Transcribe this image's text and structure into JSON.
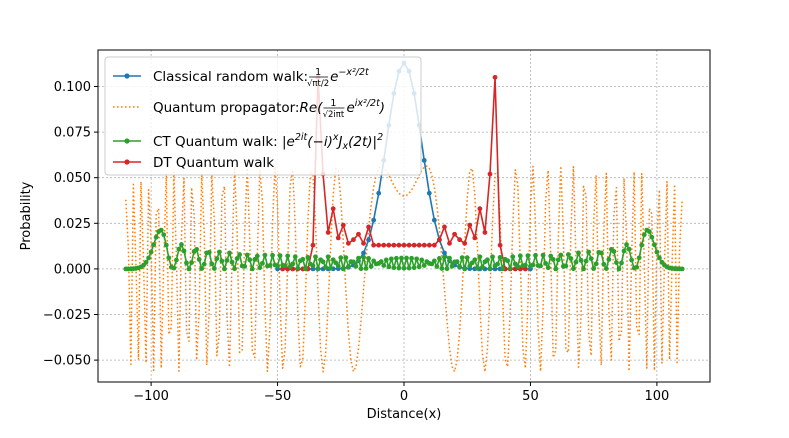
{
  "chart_data": {
    "type": "line",
    "xlabel": "Distance(x)",
    "ylabel": "Probability",
    "xlim": [
      -121,
      121
    ],
    "ylim": [
      -0.062,
      0.12
    ],
    "xticks": [
      -100,
      -50,
      0,
      50,
      100
    ],
    "xtick_labels": [
      "−100",
      "−50",
      "0",
      "50",
      "100"
    ],
    "yticks": [
      -0.05,
      -0.025,
      0.0,
      0.025,
      0.05,
      0.075,
      0.1
    ],
    "ytick_labels": [
      "−0.050",
      "−0.025",
      "0.000",
      "0.025",
      "0.050",
      "0.075",
      "0.100"
    ],
    "grid": true,
    "legend_position": "top-left",
    "t": 50,
    "series": [
      {
        "id": "classical",
        "color": "#1f77b4",
        "style": "solid-dots",
        "legend_text": "Classical random walk: ",
        "legend_formula": [
          "frac",
          "1",
          "√πt/2",
          "e",
          "−x²/2t"
        ],
        "x_range": [
          -50,
          50
        ],
        "step": 2,
        "formula": "sqrt(2/(pi*t)) * exp(-x^2/(2t))"
      },
      {
        "id": "quantum-propagator",
        "color": "#ff7f0e",
        "style": "dotted",
        "legend_text": "Quantum propagator: ",
        "legend_formula": [
          "Re(",
          "1",
          "√2iπt",
          "e",
          "ix²/2t",
          ")"
        ],
        "x_range": [
          -110,
          110
        ],
        "step": 1,
        "formula": "Re( exp(i x^2/(2t)) / sqrt(2 i pi t) )"
      },
      {
        "id": "ct-quantum-walk",
        "color": "#2ca02c",
        "style": "solid-dots",
        "legend_text": "CT Quantum walk: ",
        "legend_formula": [
          "|e",
          "2it",
          "(−i)",
          "x",
          "J",
          "x",
          "(2t)|",
          "2"
        ],
        "x_range": [
          -110,
          110
        ],
        "step": 1,
        "formula": "|J_x(2t)|^2"
      },
      {
        "id": "dt-quantum-walk",
        "color": "#d62728",
        "style": "solid-dots",
        "legend_text": "DT Quantum walk",
        "x": [
          -48,
          -46,
          -44,
          -42,
          -40,
          -38,
          -36,
          -34,
          -32,
          -30,
          -28,
          -26,
          -24,
          -22,
          -20,
          -18,
          -16,
          -14,
          -12,
          -10,
          -8,
          -6,
          -4,
          -2,
          0,
          2,
          4,
          6,
          8,
          10,
          12,
          14,
          16,
          18,
          20,
          22,
          24,
          26,
          28,
          30,
          32,
          34,
          36,
          38,
          40,
          42,
          44,
          46,
          48
        ],
        "values": [
          0.0,
          0.0,
          0.0,
          0.0,
          0.0,
          0.0,
          0.013,
          0.105,
          0.052,
          0.02,
          0.033,
          0.017,
          0.024,
          0.014,
          0.016,
          0.019,
          0.014,
          0.023,
          0.013,
          0.013,
          0.013,
          0.013,
          0.013,
          0.013,
          0.013,
          0.013,
          0.013,
          0.013,
          0.013,
          0.013,
          0.013,
          0.016,
          0.023,
          0.014,
          0.019,
          0.016,
          0.014,
          0.024,
          0.017,
          0.033,
          0.02,
          0.052,
          0.105,
          0.013,
          0.0,
          0.0,
          0.0,
          0.0,
          0.0
        ]
      }
    ]
  }
}
